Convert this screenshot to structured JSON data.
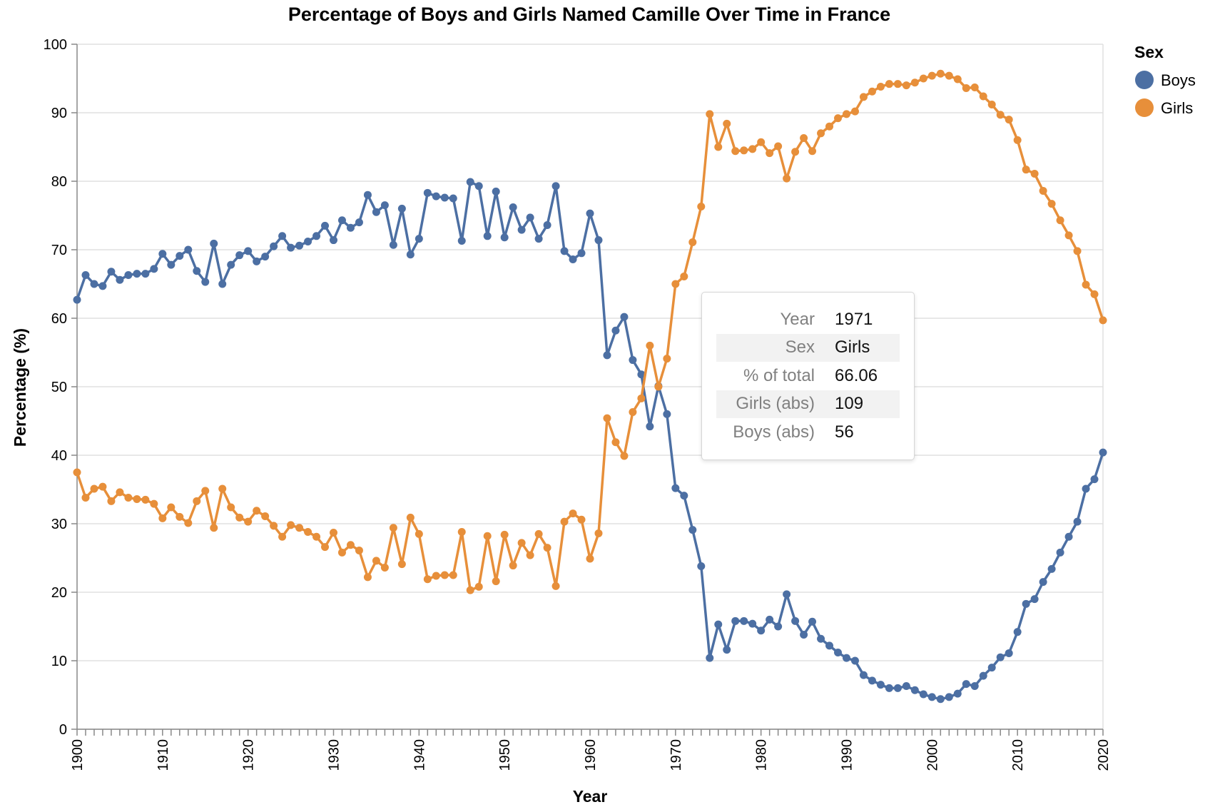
{
  "chart_data": {
    "type": "line",
    "title": "Percentage of Boys and Girls Named Camille Over Time in France",
    "xlabel": "Year",
    "ylabel": "Percentage (%)",
    "xlim": [
      1900,
      2020
    ],
    "ylim": [
      0,
      100
    ],
    "x_ticks": [
      1900,
      1901,
      1902,
      1903,
      1904,
      1905,
      1906,
      1907,
      1908,
      1909,
      1910,
      1911,
      1912,
      1913,
      1914,
      1915,
      1916,
      1917,
      1918,
      1919,
      1920,
      1921,
      1922,
      1923,
      1924,
      1925,
      1926,
      1927,
      1928,
      1929,
      1930,
      1931,
      1932,
      1933,
      1934,
      1935,
      1936,
      1937,
      1938,
      1939,
      1940,
      1941,
      1942,
      1943,
      1944,
      1945,
      1946,
      1947,
      1948,
      1949,
      1950,
      1951,
      1952,
      1953,
      1954,
      1955,
      1956,
      1957,
      1958,
      1959,
      1960,
      1961,
      1962,
      1963,
      1964,
      1965,
      1966,
      1967,
      1968,
      1969,
      1970,
      1971,
      1972,
      1973,
      1974,
      1975,
      1976,
      1977,
      1978,
      1979,
      1980,
      1981,
      1982,
      1983,
      1984,
      1985,
      1986,
      1987,
      1988,
      1989,
      1990,
      1991,
      1992,
      1993,
      1994,
      1995,
      1996,
      1997,
      1998,
      1999,
      2000,
      2001,
      2002,
      2003,
      2004,
      2005,
      2006,
      2007,
      2008,
      2009,
      2010,
      2011,
      2012,
      2013,
      2014,
      2015,
      2016,
      2017,
      2018,
      2019,
      2020
    ],
    "x_tick_labels": [
      "1900",
      "1910",
      "1920",
      "1930",
      "1940",
      "1950",
      "1960",
      "1970",
      "1980",
      "1990",
      "2000",
      "2010",
      "2020"
    ],
    "y_ticks": [
      0,
      10,
      20,
      30,
      40,
      50,
      60,
      70,
      80,
      90,
      100
    ],
    "grid": "horizontal",
    "legend": {
      "title": "Sex",
      "position": "right"
    },
    "x": [
      1900,
      1901,
      1902,
      1903,
      1904,
      1905,
      1906,
      1907,
      1908,
      1909,
      1910,
      1911,
      1912,
      1913,
      1914,
      1915,
      1916,
      1917,
      1918,
      1919,
      1920,
      1921,
      1922,
      1923,
      1924,
      1925,
      1926,
      1927,
      1928,
      1929,
      1930,
      1931,
      1932,
      1933,
      1934,
      1935,
      1936,
      1937,
      1938,
      1939,
      1940,
      1941,
      1942,
      1943,
      1944,
      1945,
      1946,
      1947,
      1948,
      1949,
      1950,
      1951,
      1952,
      1953,
      1954,
      1955,
      1956,
      1957,
      1958,
      1959,
      1960,
      1961,
      1962,
      1963,
      1964,
      1965,
      1966,
      1967,
      1968,
      1969,
      1970,
      1971,
      1972,
      1973,
      1974,
      1975,
      1976,
      1977,
      1978,
      1979,
      1980,
      1981,
      1982,
      1983,
      1984,
      1985,
      1986,
      1987,
      1988,
      1989,
      1990,
      1991,
      1992,
      1993,
      1994,
      1995,
      1996,
      1997,
      1998,
      1999,
      2000,
      2001,
      2002,
      2003,
      2004,
      2005,
      2006,
      2007,
      2008,
      2009,
      2010,
      2011,
      2012,
      2013,
      2014,
      2015,
      2016,
      2017,
      2018,
      2019,
      2020
    ],
    "series": [
      {
        "name": "Boys",
        "color": "#4c6fa3",
        "values": [
          62.7,
          66.3,
          65.0,
          64.7,
          66.8,
          65.6,
          66.3,
          66.5,
          66.5,
          67.2,
          69.4,
          67.8,
          69.1,
          70.0,
          66.9,
          65.3,
          70.9,
          65.0,
          67.8,
          69.2,
          69.8,
          68.3,
          69.0,
          70.5,
          72.0,
          70.3,
          70.6,
          71.2,
          72.0,
          73.5,
          71.4,
          74.3,
          73.2,
          74.0,
          78.0,
          75.5,
          76.5,
          70.7,
          76.0,
          69.3,
          71.6,
          78.3,
          77.8,
          77.6,
          77.5,
          71.3,
          79.9,
          79.3,
          72.0,
          78.5,
          71.8,
          76.2,
          72.9,
          74.7,
          71.6,
          73.6,
          79.3,
          69.8,
          68.6,
          69.5,
          75.3,
          71.4,
          54.6,
          58.2,
          60.2,
          53.9,
          51.8,
          44.2,
          50.1,
          46.0,
          35.2,
          34.1,
          29.1,
          23.8,
          10.4,
          15.3,
          11.6,
          15.8,
          15.8,
          15.4,
          14.4,
          16.0,
          15.0,
          19.7,
          15.8,
          13.8,
          15.7,
          13.2,
          12.2,
          11.2,
          10.4,
          10.0,
          7.9,
          7.1,
          6.5,
          6.0,
          6.0,
          6.3,
          5.7,
          5.1,
          4.7,
          4.4,
          4.7,
          5.2,
          6.6,
          6.3,
          7.8,
          9.0,
          10.5,
          11.1,
          14.2,
          18.3,
          19.0,
          21.5,
          23.4,
          25.8,
          28.1,
          30.3,
          35.1,
          36.5,
          40.4
        ]
      },
      {
        "name": "Girls",
        "color": "#e78f3a",
        "values": [
          37.5,
          33.8,
          35.1,
          35.4,
          33.3,
          34.6,
          33.8,
          33.6,
          33.5,
          32.9,
          30.8,
          32.4,
          31.0,
          30.1,
          33.3,
          34.8,
          29.4,
          35.1,
          32.4,
          30.9,
          30.3,
          31.9,
          31.1,
          29.7,
          28.1,
          29.8,
          29.4,
          28.8,
          28.1,
          26.6,
          28.7,
          25.8,
          26.9,
          26.1,
          22.2,
          24.6,
          23.6,
          29.4,
          24.1,
          30.9,
          28.5,
          21.9,
          22.4,
          22.5,
          22.5,
          28.8,
          20.3,
          20.8,
          28.2,
          21.6,
          28.4,
          23.9,
          27.2,
          25.4,
          28.5,
          26.5,
          20.9,
          30.3,
          31.5,
          30.6,
          24.9,
          28.6,
          45.4,
          41.9,
          39.9,
          46.3,
          48.3,
          56.0,
          50.0,
          54.1,
          65.0,
          66.1,
          71.1,
          76.3,
          89.8,
          85.0,
          88.4,
          84.4,
          84.5,
          84.7,
          85.7,
          84.1,
          85.1,
          80.4,
          84.3,
          86.3,
          84.4,
          87.0,
          88.0,
          89.2,
          89.8,
          90.2,
          92.3,
          93.1,
          93.8,
          94.2,
          94.2,
          94.0,
          94.4,
          95.0,
          95.4,
          95.7,
          95.4,
          94.9,
          93.6,
          93.7,
          92.4,
          91.2,
          89.7,
          89.0,
          86.0,
          81.7,
          81.1,
          78.6,
          76.7,
          74.3,
          72.1,
          69.8,
          64.9,
          63.5,
          59.7
        ]
      }
    ],
    "tooltip": {
      "rows": [
        {
          "key": "Year",
          "value": "1971"
        },
        {
          "key": "Sex",
          "value": "Girls"
        },
        {
          "key": "% of total",
          "value": "66.06"
        },
        {
          "key": "Girls (abs)",
          "value": "109"
        },
        {
          "key": "Boys (abs)",
          "value": "56"
        }
      ]
    }
  }
}
